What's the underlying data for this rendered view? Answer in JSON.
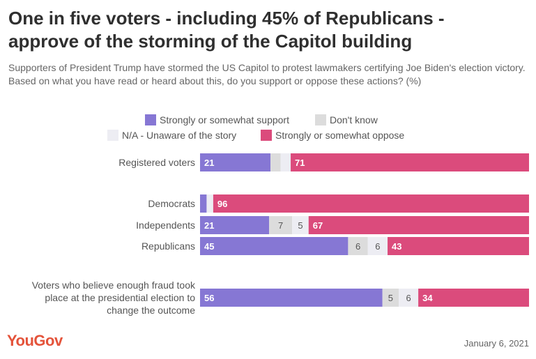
{
  "title_line1": "One in five voters - including 45% of Republicans -",
  "title_line2": "approve of the storming of the Capitol building",
  "subtitle": "Supporters of President Trump have stormed the US Capitol to protest lawmakers certifying Joe Biden's election victory. Based on what you have read or heard about this, do you support or oppose these actions? (%)",
  "brand": "YouGov",
  "date": "January 6, 2021",
  "colors": {
    "support": "#8677d4",
    "dont_know": "#dcdcdc",
    "na": "#ededf3",
    "oppose": "#db4b7c"
  },
  "chart_data": {
    "type": "bar",
    "orientation": "horizontal",
    "stacked": true,
    "series": [
      {
        "name": "Strongly or somewhat support",
        "values": [
          21,
          2,
          21,
          45,
          56
        ]
      },
      {
        "name": "Don't know",
        "values": [
          3,
          0,
          7,
          6,
          5
        ]
      },
      {
        "name": "N/A - Unaware of the story",
        "values": [
          3,
          2,
          5,
          6,
          6
        ]
      },
      {
        "name": "Strongly or somewhat oppose",
        "values": [
          71,
          96,
          67,
          43,
          34
        ]
      }
    ],
    "value_labels": [
      [
        "21",
        "",
        "",
        "71"
      ],
      [
        "",
        "",
        "",
        "96"
      ],
      [
        "21",
        "7",
        "5",
        "67"
      ],
      [
        "45",
        "6",
        "6",
        "43"
      ],
      [
        "56",
        "5",
        "6",
        "34"
      ]
    ],
    "categories": [
      [
        "Registered voters"
      ],
      [
        "Democrats"
      ],
      [
        "Independents"
      ],
      [
        "Republicans"
      ],
      [
        "Voters who believe enough fraud took",
        "place at the presidential election to",
        "change the outcome"
      ]
    ],
    "legend_placement": "top-center",
    "grid": false
  }
}
